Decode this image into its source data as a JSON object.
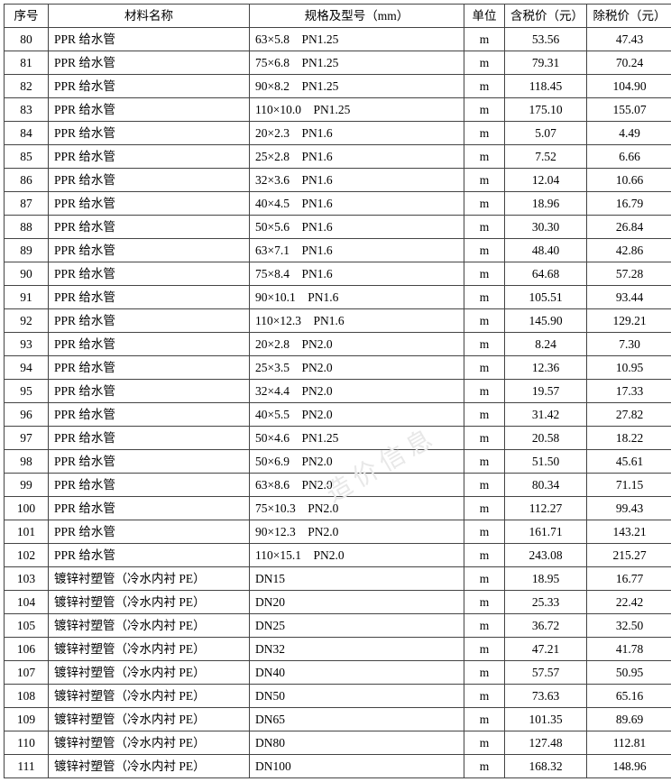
{
  "table": {
    "columns": [
      {
        "key": "seq",
        "label": "序号",
        "class": "col-seq"
      },
      {
        "key": "name",
        "label": "材料名称",
        "class": "col-name"
      },
      {
        "key": "spec",
        "label": "规格及型号（mm）",
        "class": "col-spec"
      },
      {
        "key": "unit",
        "label": "单位",
        "class": "col-unit"
      },
      {
        "key": "p1",
        "label": "含税价（元）",
        "class": "col-p1"
      },
      {
        "key": "p2",
        "label": "除税价（元）",
        "class": "col-p2"
      }
    ],
    "rows": [
      {
        "seq": "80",
        "name": "PPR 给水管",
        "spec": "63×5.8　PN1.25",
        "unit": "m",
        "p1": "53.56",
        "p2": "47.43"
      },
      {
        "seq": "81",
        "name": "PPR 给水管",
        "spec": "75×6.8　PN1.25",
        "unit": "m",
        "p1": "79.31",
        "p2": "70.24"
      },
      {
        "seq": "82",
        "name": "PPR 给水管",
        "spec": "90×8.2　PN1.25",
        "unit": "m",
        "p1": "118.45",
        "p2": "104.90"
      },
      {
        "seq": "83",
        "name": "PPR 给水管",
        "spec": "110×10.0　PN1.25",
        "unit": "m",
        "p1": "175.10",
        "p2": "155.07"
      },
      {
        "seq": "84",
        "name": "PPR 给水管",
        "spec": "20×2.3　PN1.6",
        "unit": "m",
        "p1": "5.07",
        "p2": "4.49"
      },
      {
        "seq": "85",
        "name": "PPR 给水管",
        "spec": "25×2.8　PN1.6",
        "unit": "m",
        "p1": "7.52",
        "p2": "6.66"
      },
      {
        "seq": "86",
        "name": "PPR 给水管",
        "spec": "32×3.6　PN1.6",
        "unit": "m",
        "p1": "12.04",
        "p2": "10.66"
      },
      {
        "seq": "87",
        "name": "PPR 给水管",
        "spec": "40×4.5　PN1.6",
        "unit": "m",
        "p1": "18.96",
        "p2": "16.79"
      },
      {
        "seq": "88",
        "name": "PPR 给水管",
        "spec": "50×5.6　PN1.6",
        "unit": "m",
        "p1": "30.30",
        "p2": "26.84"
      },
      {
        "seq": "89",
        "name": "PPR 给水管",
        "spec": "63×7.1　PN1.6",
        "unit": "m",
        "p1": "48.40",
        "p2": "42.86"
      },
      {
        "seq": "90",
        "name": "PPR 给水管",
        "spec": "75×8.4　PN1.6",
        "unit": "m",
        "p1": "64.68",
        "p2": "57.28"
      },
      {
        "seq": "91",
        "name": "PPR 给水管",
        "spec": "90×10.1　PN1.6",
        "unit": "m",
        "p1": "105.51",
        "p2": "93.44"
      },
      {
        "seq": "92",
        "name": "PPR 给水管",
        "spec": "110×12.3　PN1.6",
        "unit": "m",
        "p1": "145.90",
        "p2": "129.21"
      },
      {
        "seq": "93",
        "name": "PPR 给水管",
        "spec": "20×2.8　PN2.0",
        "unit": "m",
        "p1": "8.24",
        "p2": "7.30"
      },
      {
        "seq": "94",
        "name": "PPR 给水管",
        "spec": "25×3.5　PN2.0",
        "unit": "m",
        "p1": "12.36",
        "p2": "10.95"
      },
      {
        "seq": "95",
        "name": "PPR 给水管",
        "spec": "32×4.4　PN2.0",
        "unit": "m",
        "p1": "19.57",
        "p2": "17.33"
      },
      {
        "seq": "96",
        "name": "PPR 给水管",
        "spec": "40×5.5　PN2.0",
        "unit": "m",
        "p1": "31.42",
        "p2": "27.82"
      },
      {
        "seq": "97",
        "name": "PPR 给水管",
        "spec": "50×4.6　PN1.25",
        "unit": "m",
        "p1": "20.58",
        "p2": "18.22"
      },
      {
        "seq": "98",
        "name": "PPR 给水管",
        "spec": "50×6.9　PN2.0",
        "unit": "m",
        "p1": "51.50",
        "p2": "45.61"
      },
      {
        "seq": "99",
        "name": "PPR 给水管",
        "spec": "63×8.6　PN2.0",
        "unit": "m",
        "p1": "80.34",
        "p2": "71.15"
      },
      {
        "seq": "100",
        "name": "PPR 给水管",
        "spec": "75×10.3　PN2.0",
        "unit": "m",
        "p1": "112.27",
        "p2": "99.43"
      },
      {
        "seq": "101",
        "name": "PPR 给水管",
        "spec": "90×12.3　PN2.0",
        "unit": "m",
        "p1": "161.71",
        "p2": "143.21"
      },
      {
        "seq": "102",
        "name": "PPR 给水管",
        "spec": "110×15.1　PN2.0",
        "unit": "m",
        "p1": "243.08",
        "p2": "215.27"
      },
      {
        "seq": "103",
        "name": "镀锌衬塑管（冷水内衬 PE）",
        "spec": "DN15",
        "unit": "m",
        "p1": "18.95",
        "p2": "16.77"
      },
      {
        "seq": "104",
        "name": "镀锌衬塑管（冷水内衬 PE）",
        "spec": "DN20",
        "unit": "m",
        "p1": "25.33",
        "p2": "22.42"
      },
      {
        "seq": "105",
        "name": "镀锌衬塑管（冷水内衬 PE）",
        "spec": "DN25",
        "unit": "m",
        "p1": "36.72",
        "p2": "32.50"
      },
      {
        "seq": "106",
        "name": "镀锌衬塑管（冷水内衬 PE）",
        "spec": "DN32",
        "unit": "m",
        "p1": "47.21",
        "p2": "41.78"
      },
      {
        "seq": "107",
        "name": "镀锌衬塑管（冷水内衬 PE）",
        "spec": "DN40",
        "unit": "m",
        "p1": "57.57",
        "p2": "50.95"
      },
      {
        "seq": "108",
        "name": "镀锌衬塑管（冷水内衬 PE）",
        "spec": "DN50",
        "unit": "m",
        "p1": "73.63",
        "p2": "65.16"
      },
      {
        "seq": "109",
        "name": "镀锌衬塑管（冷水内衬 PE）",
        "spec": "DN65",
        "unit": "m",
        "p1": "101.35",
        "p2": "89.69"
      },
      {
        "seq": "110",
        "name": "镀锌衬塑管（冷水内衬 PE）",
        "spec": "DN80",
        "unit": "m",
        "p1": "127.48",
        "p2": "112.81"
      },
      {
        "seq": "111",
        "name": "镀锌衬塑管（冷水内衬 PE）",
        "spec": "DN100",
        "unit": "m",
        "p1": "168.32",
        "p2": "148.96"
      }
    ]
  },
  "watermark": "造价信息"
}
